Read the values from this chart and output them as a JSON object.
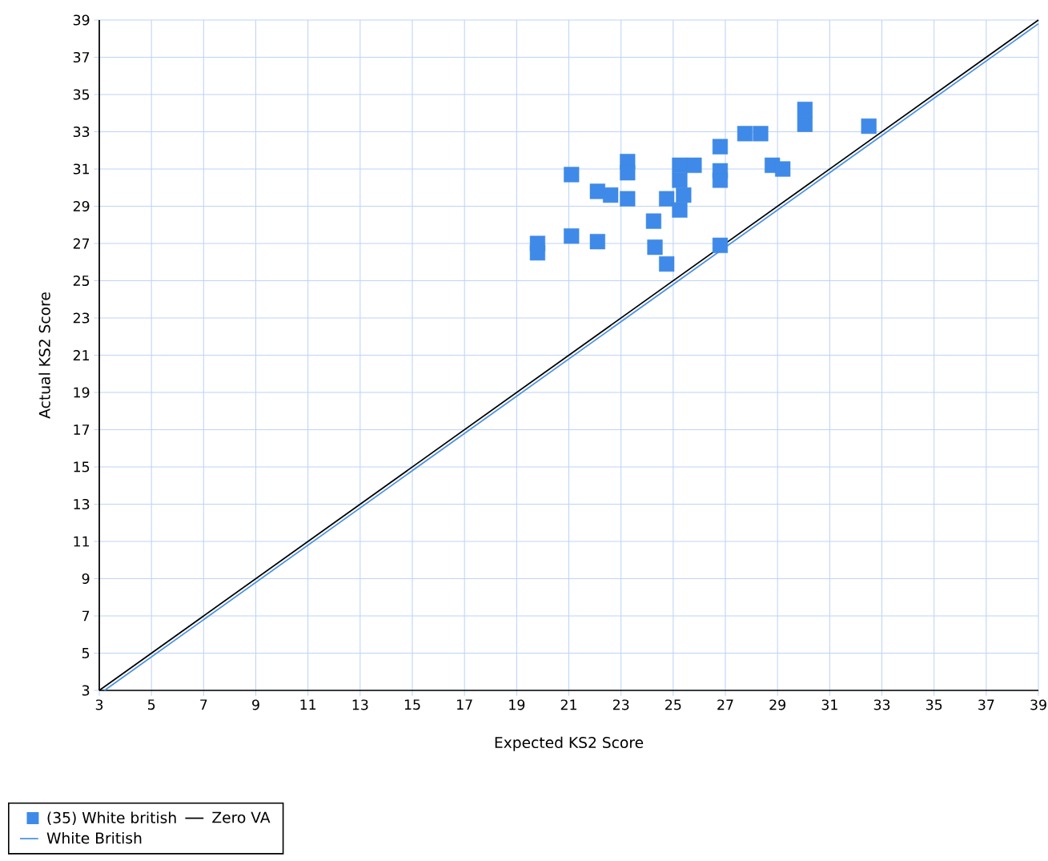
{
  "chart_data": {
    "type": "scatter",
    "xlabel": "Expected KS2 Score",
    "ylabel": "Actual KS2 Score",
    "xlim": [
      3,
      39
    ],
    "ylim": [
      3,
      39
    ],
    "xticks": [
      3,
      5,
      7,
      9,
      11,
      13,
      15,
      17,
      19,
      21,
      23,
      25,
      27,
      29,
      31,
      33,
      35,
      37,
      39
    ],
    "yticks": [
      3,
      5,
      7,
      9,
      11,
      13,
      15,
      17,
      19,
      21,
      23,
      25,
      27,
      29,
      31,
      33,
      35,
      37,
      39
    ],
    "grid": true,
    "legend": "bottom left",
    "series": [
      {
        "name": "(35) White british",
        "marker": "square",
        "color": "#3f8ae8",
        "x": [
          19.8,
          19.8,
          21.1,
          21.1,
          22.1,
          22.6,
          22.1,
          23.25,
          23.25,
          23.25,
          24.25,
          24.3,
          24.75,
          24.75,
          25.25,
          25.25,
          25.4,
          25.25,
          25.8,
          26.8,
          26.8,
          26.8,
          26.8,
          27.75,
          28.35,
          28.8,
          29.2,
          30.05,
          30.05,
          32.5
        ],
        "values": [
          27.0,
          26.5,
          30.7,
          27.4,
          29.8,
          29.6,
          27.1,
          31.4,
          30.8,
          29.4,
          28.2,
          26.8,
          25.9,
          29.4,
          31.2,
          30.4,
          29.6,
          28.8,
          31.2,
          32.2,
          30.9,
          30.4,
          26.9,
          32.9,
          32.9,
          31.2,
          31.0,
          34.2,
          33.4,
          33.3
        ]
      },
      {
        "name": "Zero VA",
        "type": "line",
        "marker": "none",
        "color": "#000000",
        "x": [
          3,
          39
        ],
        "values": [
          3,
          39
        ]
      },
      {
        "name": "White British",
        "type": "line",
        "marker": "none",
        "color": "#4a90e2",
        "x": [
          3.2,
          39
        ],
        "values": [
          3,
          38.8
        ]
      }
    ]
  }
}
